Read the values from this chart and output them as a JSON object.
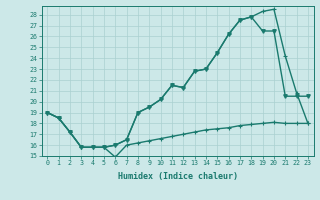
{
  "bg_color": "#cce8e8",
  "line_color": "#1a7a6e",
  "grid_color": "#aad0d0",
  "xlabel": "Humidex (Indice chaleur)",
  "xlim": [
    -0.5,
    23.5
  ],
  "ylim": [
    15,
    28.8
  ],
  "yticks": [
    15,
    16,
    17,
    18,
    19,
    20,
    21,
    22,
    23,
    24,
    25,
    26,
    27,
    28
  ],
  "xticks": [
    0,
    1,
    2,
    3,
    4,
    5,
    6,
    7,
    8,
    9,
    10,
    11,
    12,
    13,
    14,
    15,
    16,
    17,
    18,
    19,
    20,
    21,
    22,
    23
  ],
  "series1_x": [
    0,
    1,
    2,
    3,
    4,
    5,
    6,
    7,
    8,
    9,
    10,
    11,
    12,
    13,
    14,
    15,
    16,
    17,
    18,
    19,
    20,
    21,
    22,
    23
  ],
  "series1_y": [
    19.0,
    18.5,
    17.2,
    15.8,
    15.8,
    15.8,
    16.0,
    16.5,
    19.0,
    19.5,
    20.2,
    21.5,
    21.3,
    22.8,
    23.0,
    24.5,
    26.2,
    27.5,
    27.8,
    28.3,
    28.5,
    24.2,
    20.8,
    18.0
  ],
  "series2_x": [
    0,
    1,
    2,
    3,
    4,
    5,
    6,
    7,
    8,
    9,
    10,
    11,
    12,
    13,
    14,
    15,
    16,
    17,
    18,
    19,
    20,
    21,
    22,
    23
  ],
  "series2_y": [
    19.0,
    18.5,
    17.2,
    15.8,
    15.8,
    15.8,
    16.0,
    16.5,
    19.0,
    19.5,
    20.2,
    21.5,
    21.3,
    22.8,
    23.0,
    24.5,
    26.2,
    27.5,
    27.8,
    26.5,
    26.5,
    20.5,
    20.5,
    20.5
  ],
  "series3_x": [
    0,
    1,
    2,
    3,
    4,
    5,
    6,
    7,
    8,
    9,
    10,
    11,
    12,
    13,
    14,
    15,
    16,
    17,
    18,
    19,
    20,
    21,
    22,
    23
  ],
  "series3_y": [
    19.0,
    18.5,
    17.2,
    15.8,
    15.8,
    15.8,
    14.9,
    16.0,
    16.2,
    16.4,
    16.6,
    16.8,
    17.0,
    17.2,
    17.4,
    17.5,
    17.6,
    17.8,
    17.9,
    18.0,
    18.1,
    18.0,
    18.0,
    18.0
  ],
  "marker_size": 2.5,
  "linewidth": 1.0
}
